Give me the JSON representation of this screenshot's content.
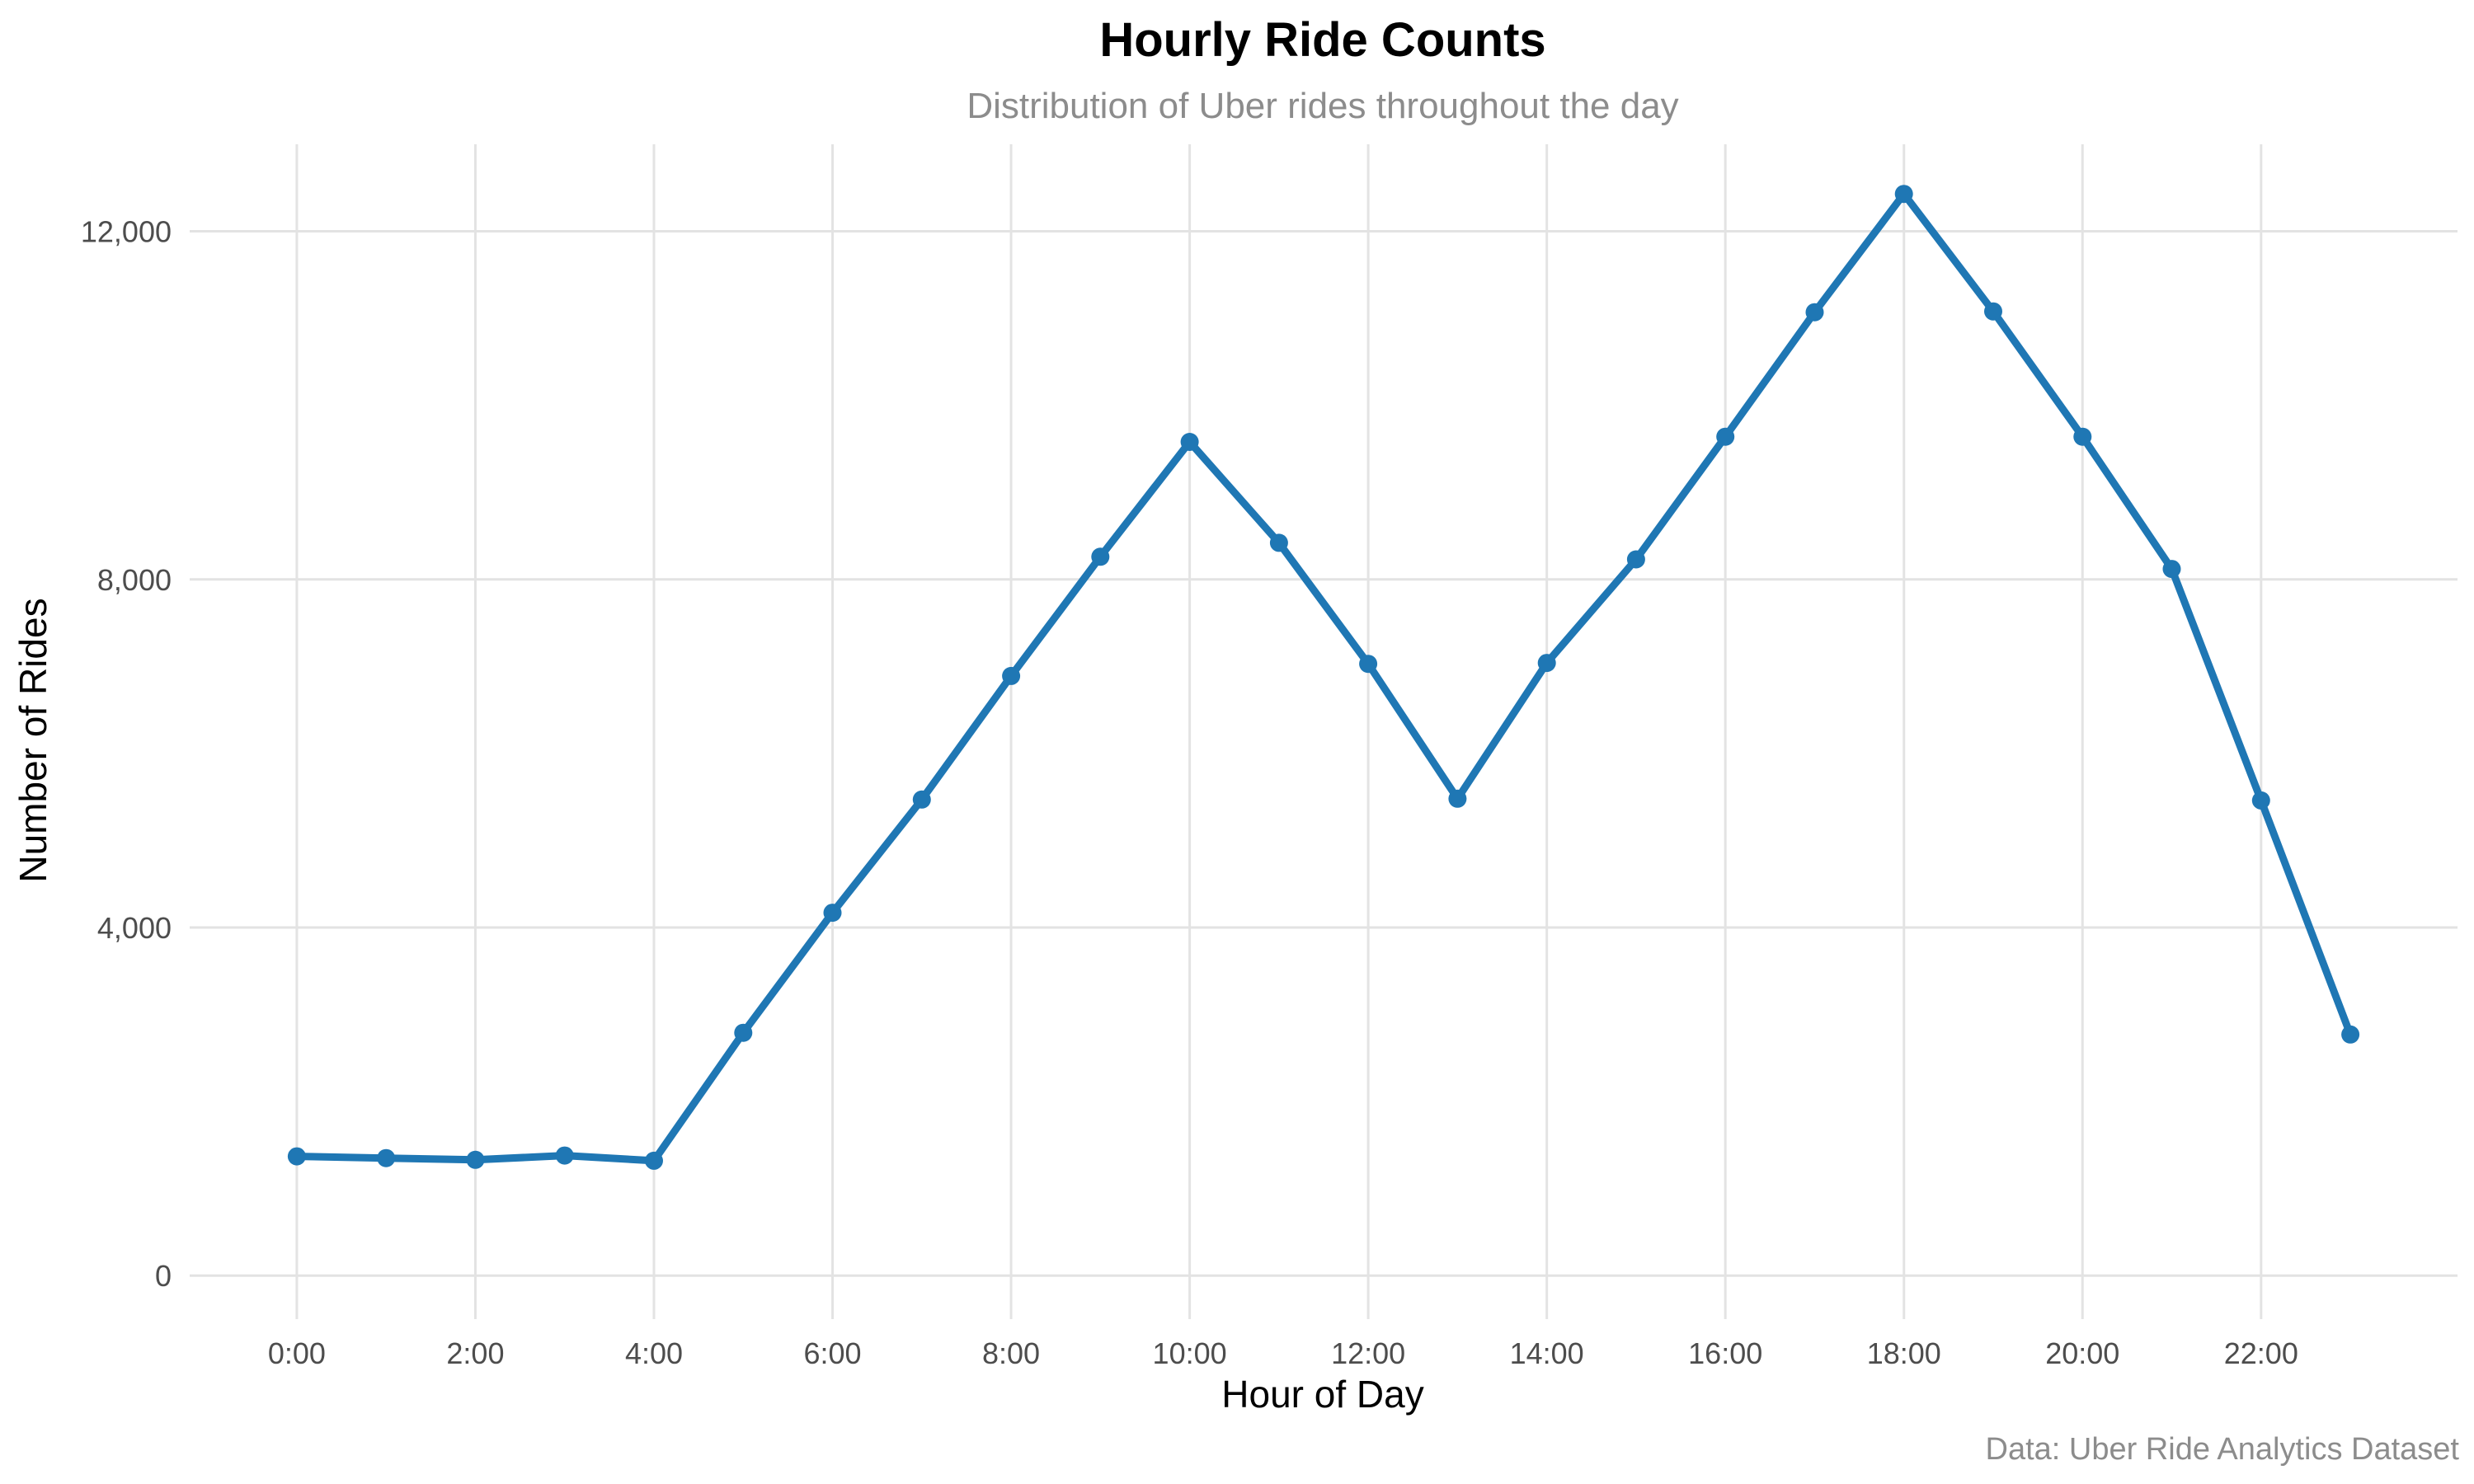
{
  "chart_data": {
    "type": "line",
    "title": "Hourly Ride Counts",
    "subtitle": "Distribution of Uber rides throughout the day",
    "caption": "Data: Uber Ride Analytics Dataset",
    "xlabel": "Hour of Day",
    "ylabel": "Number of Rides",
    "x": [
      0,
      1,
      2,
      3,
      4,
      5,
      6,
      7,
      8,
      9,
      10,
      11,
      12,
      13,
      14,
      15,
      16,
      17,
      18,
      19,
      20,
      21,
      22,
      23
    ],
    "values": [
      1370,
      1350,
      1330,
      1380,
      1320,
      2790,
      4170,
      5470,
      6890,
      8260,
      9580,
      8420,
      7030,
      5480,
      7040,
      8230,
      9640,
      11070,
      12430,
      11080,
      9640,
      8120,
      5460,
      2770
    ],
    "x_ticks": [
      0,
      2,
      4,
      6,
      8,
      10,
      12,
      14,
      16,
      18,
      20,
      22
    ],
    "x_tick_labels": [
      "0:00",
      "2:00",
      "4:00",
      "6:00",
      "8:00",
      "10:00",
      "12:00",
      "14:00",
      "16:00",
      "18:00",
      "20:00",
      "22:00"
    ],
    "y_ticks": [
      0,
      4000,
      8000,
      12000
    ],
    "y_tick_labels": [
      "0",
      "4,000",
      "8,000",
      "12,000"
    ],
    "xlim": [
      -1.2,
      24.2
    ],
    "ylim": [
      -500,
      13000
    ],
    "grid": true,
    "legend": "none",
    "color": "#1f77b4"
  }
}
